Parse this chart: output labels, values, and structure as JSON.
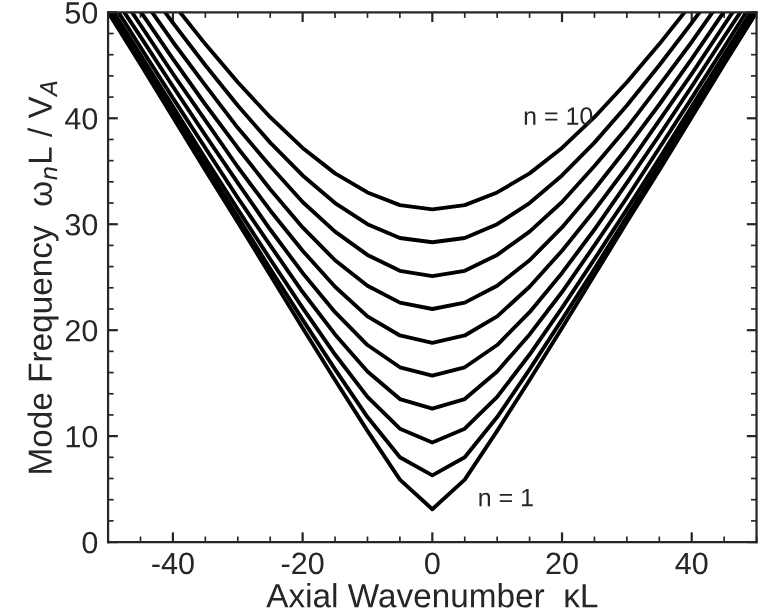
{
  "chart_data": {
    "type": "line",
    "xlabel": "Axial Wavenumber  κL",
    "ylabel": "Mode Frequency  ω$_{n}$L / V$_{A}$",
    "xlim": [
      -50,
      50
    ],
    "ylim": [
      0,
      50
    ],
    "xticks": [
      -40,
      -20,
      0,
      20,
      40
    ],
    "yticks": [
      0,
      10,
      20,
      30,
      40,
      50
    ],
    "grid": false,
    "marker": "none",
    "line_style": "solid",
    "annotations": [
      "n = 10",
      "n = 1"
    ],
    "series": [
      {
        "color": "#000000",
        "x": [
          -50,
          -45,
          -40,
          -35,
          -30,
          -25,
          -20,
          -15,
          -10,
          -5,
          0,
          5,
          10,
          15,
          20,
          25,
          30,
          35,
          40,
          45,
          50
        ],
        "values": [
          50,
          45.1,
          40.1,
          35.1,
          30.2,
          25.2,
          20.2,
          15.3,
          10.5,
          5.9,
          3.1,
          5.9,
          10.5,
          15.3,
          20.2,
          25.2,
          30.2,
          35.1,
          40.1,
          45.1,
          50
        ]
      },
      {
        "color": "#000000",
        "x": [
          -49.6,
          -45,
          -40,
          -35,
          -30,
          -25,
          -20,
          -15,
          -10,
          -5,
          0,
          5,
          10,
          15,
          20,
          25,
          30,
          35,
          40,
          45,
          49.6
        ],
        "values": [
          50,
          45.4,
          40.5,
          35.6,
          30.7,
          25.8,
          21.0,
          16.3,
          11.8,
          8.0,
          6.3,
          8.0,
          11.8,
          16.3,
          21.0,
          25.8,
          30.7,
          35.6,
          40.5,
          45.4,
          50
        ]
      },
      {
        "color": "#000000",
        "x": [
          -49.1,
          -45,
          -40,
          -35,
          -30,
          -25,
          -20,
          -15,
          -10,
          -5,
          0,
          5,
          10,
          15,
          20,
          25,
          30,
          35,
          40,
          45,
          49.1
        ],
        "values": [
          50,
          46.0,
          41.1,
          36.2,
          31.4,
          26.7,
          22.1,
          17.7,
          13.7,
          10.7,
          9.4,
          10.7,
          13.7,
          17.7,
          22.1,
          26.7,
          31.4,
          36.2,
          41.1,
          46.0,
          50
        ]
      },
      {
        "color": "#000000",
        "x": [
          -48.4,
          -45,
          -40,
          -35,
          -30,
          -25,
          -20,
          -15,
          -10,
          -5,
          0,
          5,
          10,
          15,
          20,
          25,
          30,
          35,
          40,
          45,
          48.4
        ],
        "values": [
          50,
          46.7,
          41.9,
          37.2,
          32.5,
          28.0,
          23.6,
          19.6,
          16.1,
          13.5,
          12.6,
          13.5,
          16.1,
          19.6,
          23.6,
          28.0,
          32.5,
          37.2,
          41.9,
          46.7,
          50
        ]
      },
      {
        "color": "#000000",
        "x": [
          -47.5,
          -45,
          -40,
          -35,
          -30,
          -25,
          -20,
          -15,
          -10,
          -5,
          0,
          5,
          10,
          15,
          20,
          25,
          30,
          35,
          40,
          45,
          47.5
        ],
        "values": [
          50,
          47.7,
          43.0,
          38.4,
          33.9,
          29.5,
          25.4,
          21.7,
          18.6,
          16.5,
          15.7,
          16.5,
          18.6,
          21.7,
          25.4,
          29.5,
          33.9,
          38.4,
          43.0,
          47.7,
          50
        ]
      },
      {
        "color": "#000000",
        "x": [
          -46.3,
          -45,
          -40,
          -35,
          -30,
          -25,
          -20,
          -15,
          -10,
          -5,
          0,
          5,
          10,
          15,
          20,
          25,
          30,
          35,
          40,
          45,
          46.3
        ],
        "values": [
          50,
          48.8,
          44.2,
          39.8,
          35.4,
          31.3,
          27.5,
          24.1,
          21.3,
          19.5,
          18.8,
          19.5,
          21.3,
          24.1,
          27.5,
          31.3,
          35.4,
          39.8,
          44.2,
          48.8,
          50
        ]
      },
      {
        "color": "#000000",
        "x": [
          -44.9,
          -40,
          -35,
          -30,
          -25,
          -20,
          -15,
          -10,
          -5,
          0,
          5,
          10,
          15,
          20,
          25,
          30,
          35,
          40,
          44.9
        ],
        "values": [
          50,
          45.6,
          41.3,
          37.2,
          33.3,
          29.7,
          26.6,
          24.2,
          22.6,
          22.0,
          22.6,
          24.2,
          26.6,
          29.7,
          33.3,
          37.2,
          41.3,
          45.6,
          50
        ]
      },
      {
        "color": "#000000",
        "x": [
          -43.2,
          -40,
          -35,
          -30,
          -25,
          -20,
          -15,
          -10,
          -5,
          0,
          5,
          10,
          15,
          20,
          25,
          30,
          35,
          40,
          43.2
        ],
        "values": [
          50,
          47.2,
          43.1,
          39.1,
          35.5,
          32.1,
          29.3,
          27.1,
          25.6,
          25.1,
          25.6,
          27.1,
          29.3,
          32.1,
          35.5,
          39.1,
          43.1,
          47.2,
          50
        ]
      },
      {
        "color": "#000000",
        "x": [
          -41.2,
          -40,
          -35,
          -30,
          -25,
          -20,
          -15,
          -10,
          -5,
          0,
          5,
          10,
          15,
          20,
          25,
          30,
          35,
          40,
          41.2
        ],
        "values": [
          50,
          49.0,
          45.0,
          41.2,
          37.7,
          34.6,
          32.0,
          30.0,
          28.7,
          28.3,
          28.7,
          30.0,
          32.0,
          34.6,
          37.7,
          41.2,
          45.0,
          49.0,
          50
        ]
      },
      {
        "color": "#000000",
        "x": [
          -38.9,
          -35,
          -30,
          -25,
          -20,
          -15,
          -10,
          -5,
          0,
          5,
          10,
          15,
          20,
          25,
          30,
          35,
          38.9
        ],
        "values": [
          50,
          47.0,
          43.4,
          40.1,
          37.2,
          34.8,
          33.0,
          31.8,
          31.4,
          31.8,
          33.0,
          34.8,
          37.2,
          40.1,
          43.4,
          47.0,
          50
        ]
      }
    ]
  }
}
